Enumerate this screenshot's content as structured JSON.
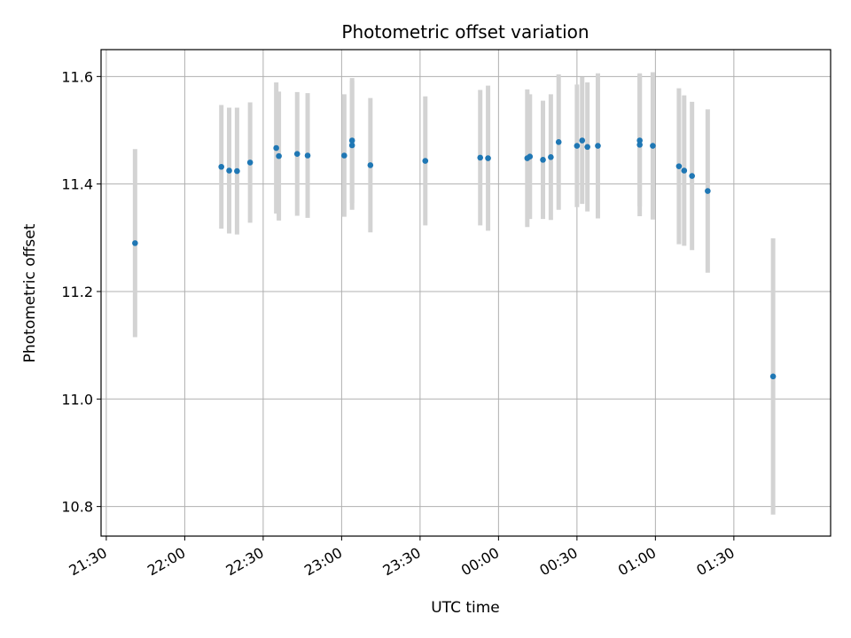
{
  "chart_data": {
    "type": "scatter",
    "title": "Photometric offset variation",
    "xlabel": "UTC time",
    "ylabel": "Photometric offset",
    "x_tick_labels": [
      "21:30",
      "22:00",
      "22:30",
      "23:00",
      "23:30",
      "00:00",
      "00:30",
      "01:00",
      "01:30"
    ],
    "y_ticks": [
      10.8,
      11.0,
      11.2,
      11.4,
      11.6
    ],
    "y_tick_labels": [
      "10.8",
      "11.0",
      "11.2",
      "11.4",
      "11.6"
    ],
    "xlim": [
      "21:28",
      "02:07"
    ],
    "ylim": [
      10.745,
      11.65
    ],
    "grid": true,
    "colors": {
      "points": "#1f77b4",
      "errorbars": "#d3d3d3",
      "grid": "#b0b0b0"
    },
    "series": [
      {
        "points": [
          {
            "t": "21:41",
            "y": 11.29,
            "err": 0.175
          },
          {
            "t": "22:14",
            "y": 11.432,
            "err": 0.115
          },
          {
            "t": "22:17",
            "y": 11.425,
            "err": 0.117
          },
          {
            "t": "22:20",
            "y": 11.424,
            "err": 0.118
          },
          {
            "t": "22:25",
            "y": 11.44,
            "err": 0.112
          },
          {
            "t": "22:35",
            "y": 11.467,
            "err": 0.122
          },
          {
            "t": "22:36",
            "y": 11.452,
            "err": 0.12
          },
          {
            "t": "22:43",
            "y": 11.456,
            "err": 0.115
          },
          {
            "t": "22:47",
            "y": 11.453,
            "err": 0.116
          },
          {
            "t": "23:01",
            "y": 11.453,
            "err": 0.114
          },
          {
            "t": "23:04",
            "y": 11.481,
            "err": 0.116
          },
          {
            "t": "23:04",
            "y": 11.472,
            "err": 0.12
          },
          {
            "t": "23:11",
            "y": 11.435,
            "err": 0.125
          },
          {
            "t": "23:32",
            "y": 11.443,
            "err": 0.12
          },
          {
            "t": "23:53",
            "y": 11.449,
            "err": 0.126
          },
          {
            "t": "23:56",
            "y": 11.448,
            "err": 0.135
          },
          {
            "t": "00:11",
            "y": 11.448,
            "err": 0.128
          },
          {
            "t": "00:12",
            "y": 11.451,
            "err": 0.116
          },
          {
            "t": "00:17",
            "y": 11.445,
            "err": 0.11
          },
          {
            "t": "00:20",
            "y": 11.45,
            "err": 0.117
          },
          {
            "t": "00:23",
            "y": 11.478,
            "err": 0.126
          },
          {
            "t": "00:30",
            "y": 11.471,
            "err": 0.114
          },
          {
            "t": "00:32",
            "y": 11.481,
            "err": 0.118
          },
          {
            "t": "00:34",
            "y": 11.469,
            "err": 0.12
          },
          {
            "t": "00:38",
            "y": 11.471,
            "err": 0.135
          },
          {
            "t": "00:54",
            "y": 11.481,
            "err": 0.123
          },
          {
            "t": "00:54",
            "y": 11.473,
            "err": 0.133
          },
          {
            "t": "00:59",
            "y": 11.471,
            "err": 0.137
          },
          {
            "t": "01:09",
            "y": 11.433,
            "err": 0.145
          },
          {
            "t": "01:11",
            "y": 11.425,
            "err": 0.14
          },
          {
            "t": "01:14",
            "y": 11.415,
            "err": 0.138
          },
          {
            "t": "01:20",
            "y": 11.387,
            "err": 0.152
          },
          {
            "t": "01:45",
            "y": 11.042,
            "err": 0.257
          }
        ]
      }
    ]
  }
}
